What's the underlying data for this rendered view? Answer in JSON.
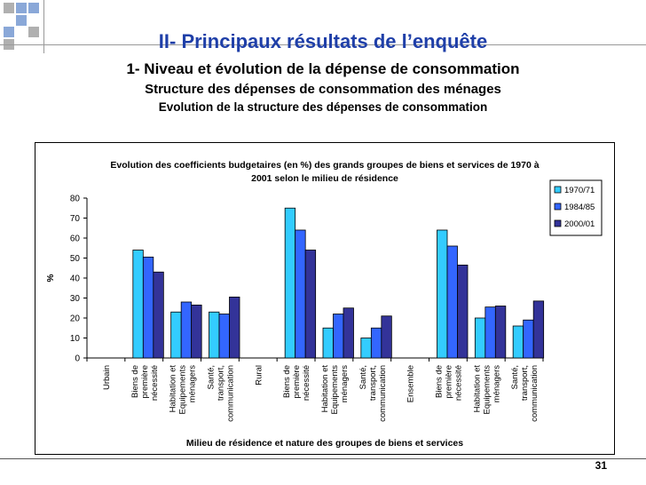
{
  "slide": {
    "title": "II- Principaux résultats de l’enquête",
    "subtitle1": "1- Niveau et évolution de la dépense de consommation",
    "subtitle2": "Structure des dépenses de consommation des ménages",
    "subtitle3": "Evolution de la structure des dépenses de consommation",
    "page_number": "31"
  },
  "colors": {
    "title_blue": "#1f3fa8",
    "decor_blue": "#8aa8d8",
    "decor_gray": "#b0b0b0",
    "series_1970": "#33ccff",
    "series_1984": "#3366ff",
    "series_2000": "#333399"
  },
  "chart_data": {
    "type": "bar",
    "title_line1": "Evolution des coefficients budgetaires (en %) des grands groupes de biens et services de 1970 à",
    "title_line2": "2001 selon le milieu de résidence",
    "xlabel": "Milieu de résidence et nature des groupes de biens et services",
    "ylabel": "%",
    "ylim": [
      0,
      80
    ],
    "yticks": [
      0,
      10,
      20,
      30,
      40,
      50,
      60,
      70,
      80
    ],
    "grid": false,
    "legend_position": "top-right",
    "categories": [
      [
        "Urbain"
      ],
      [
        "Biens de",
        "première",
        "nécessité"
      ],
      [
        "Habitation et",
        "Equipements",
        "ménagers"
      ],
      [
        "Santé,",
        "transport,",
        "communication"
      ],
      [
        "Rural"
      ],
      [
        "Biens de",
        "première",
        "nécessité"
      ],
      [
        "Habitation et",
        "Equipements",
        "ménagers"
      ],
      [
        "Santé,",
        "transport,",
        "communication"
      ],
      [
        "Ensemble"
      ],
      [
        "Biens de",
        "première",
        "nécessité"
      ],
      [
        "Habitation et",
        "Equipements",
        "ménagers"
      ],
      [
        "Santé,",
        "transport,",
        "communication"
      ]
    ],
    "series": [
      {
        "name": "1970/71",
        "values": [
          null,
          54,
          23,
          23,
          null,
          75,
          15,
          10,
          null,
          64,
          20,
          16
        ]
      },
      {
        "name": "1984/85",
        "values": [
          null,
          50.5,
          28,
          22,
          null,
          64,
          22,
          15,
          null,
          56,
          25.5,
          19
        ]
      },
      {
        "name": "2000/01",
        "values": [
          null,
          43,
          26.5,
          30.5,
          null,
          54,
          25,
          21,
          null,
          46.5,
          26,
          28.5
        ]
      }
    ]
  }
}
